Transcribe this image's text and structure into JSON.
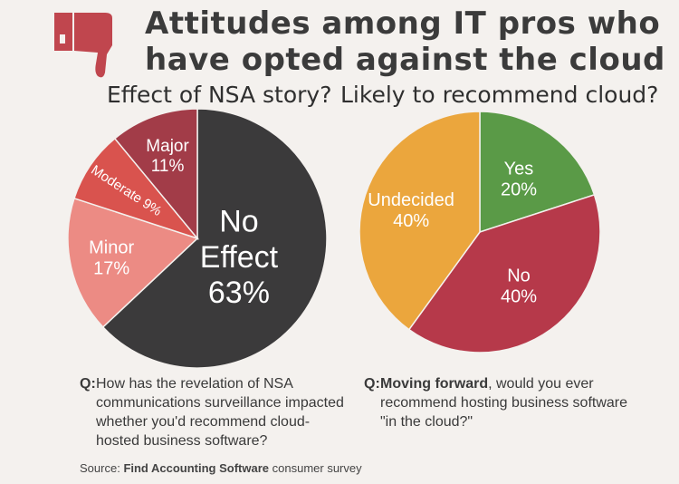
{
  "header": {
    "title_line1": "Attitudes among IT pros who",
    "title_line2": "have opted against the cloud",
    "icon": "thumbs-down-icon"
  },
  "chart_data": [
    {
      "type": "pie",
      "title": "Effect of NSA story?",
      "slices": [
        {
          "label": "No Effect",
          "value": 63,
          "display": "63%",
          "color": "#3b3a3b"
        },
        {
          "label": "Minor",
          "value": 17,
          "display": "17%",
          "color": "#ec8b84"
        },
        {
          "label": "Moderate",
          "value": 9,
          "display": "9%",
          "color": "#d9534e"
        },
        {
          "label": "Major",
          "value": 11,
          "display": "11%",
          "color": "#a23c48"
        }
      ]
    },
    {
      "type": "pie",
      "title": "Likely to recommend cloud?",
      "slices": [
        {
          "label": "Yes",
          "value": 20,
          "display": "20%",
          "color": "#5a9a47"
        },
        {
          "label": "No",
          "value": 40,
          "display": "40%",
          "color": "#b6394a"
        },
        {
          "label": "Undecided",
          "value": 40,
          "display": "40%",
          "color": "#eba63d"
        }
      ]
    }
  ],
  "questions": {
    "left": {
      "label": "Q:",
      "text": "How has the revelation of NSA communications surveillance impacted whether you'd recommend cloud-hosted business software?"
    },
    "right": {
      "label": "Q:",
      "bold": "Moving forward",
      "text": ", would you ever recommend hosting business software \"in the cloud?\""
    }
  },
  "source": {
    "prefix": "Source:",
    "name": "Find Accounting Software",
    "suffix": "consumer survey"
  }
}
